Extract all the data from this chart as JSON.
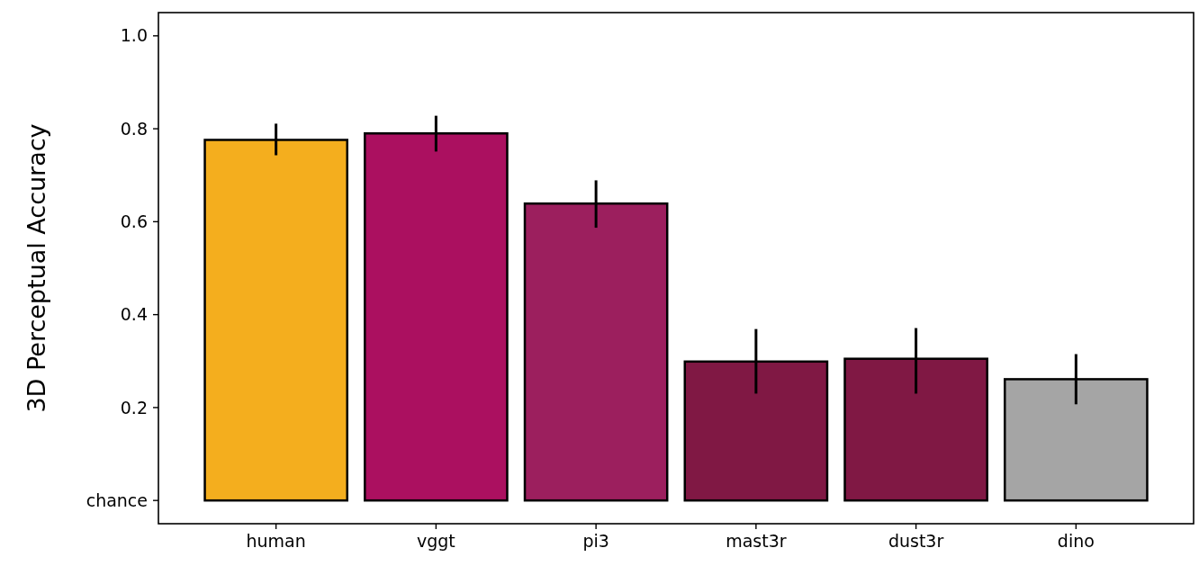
{
  "chart_data": {
    "type": "bar",
    "ylabel": "3D Perceptual Accuracy",
    "categories": [
      "human",
      "vggt",
      "pi3",
      "mast3r",
      "dust3r",
      "dino"
    ],
    "values": [
      0.776,
      0.79,
      0.639,
      0.299,
      0.305,
      0.261
    ],
    "colors": [
      "#f4ae1e",
      "#ab1060",
      "#9c1f5e",
      "#801844",
      "#801844",
      "#a5a5a5"
    ],
    "errors": [
      [
        0.743,
        0.811
      ],
      [
        0.751,
        0.828
      ],
      [
        0.587,
        0.689
      ],
      [
        0.23,
        0.369
      ],
      [
        0.23,
        0.371
      ],
      [
        0.207,
        0.315
      ]
    ],
    "ylim": [
      -0.05,
      1.05
    ],
    "yticks": [
      {
        "value": 0,
        "label": "chance"
      },
      0.2,
      0.4,
      0.6,
      0.8,
      {
        "value": 1,
        "label": "1.0"
      }
    ],
    "grid": false
  }
}
